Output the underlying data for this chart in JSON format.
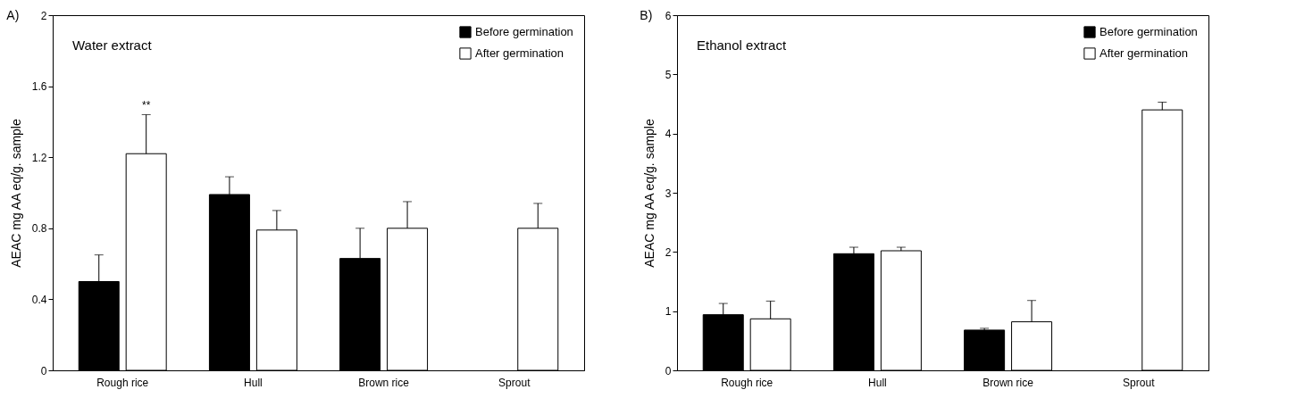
{
  "chart_data": [
    {
      "type": "bar",
      "title": "A)",
      "ylabel": "AEAC  mg AA eq/g. sample",
      "categories": [
        "Rough rice",
        "Hull",
        "Brown rice",
        "Sprout"
      ],
      "ylim": [
        0,
        2
      ],
      "yticks": [
        0,
        0.4,
        0.8,
        1.2,
        1.6,
        2
      ],
      "grid": false,
      "legend": "top right",
      "annotations": [
        "Water extract",
        "**"
      ],
      "series": [
        {
          "name": "Before germination",
          "color": "#000000",
          "values": [
            0.5,
            0.99,
            0.63,
            null
          ],
          "errors": [
            [
              0.5,
              0.65
            ],
            [
              0.99,
              1.09
            ],
            [
              0.63,
              0.8
            ],
            null
          ]
        },
        {
          "name": "After germination",
          "color": "#ffffff",
          "values": [
            1.22,
            0.79,
            0.8,
            0.8
          ],
          "errors": [
            [
              1.22,
              1.44
            ],
            [
              0.79,
              0.9
            ],
            [
              0.8,
              0.95
            ],
            [
              0.8,
              0.94
            ]
          ]
        }
      ]
    },
    {
      "type": "bar",
      "title": "B)",
      "ylabel": "AEAC  mg AA eq/g. sample",
      "categories": [
        "Rough rice",
        "Hull",
        "Brown rice",
        "Sprout"
      ],
      "ylim": [
        0,
        6
      ],
      "yticks": [
        0,
        1,
        2,
        3,
        4,
        5,
        6
      ],
      "grid": false,
      "legend": "top right",
      "annotations": [
        "Ethanol extract"
      ],
      "series": [
        {
          "name": "Before germination",
          "color": "#000000",
          "values": [
            0.94,
            1.97,
            0.68,
            null
          ],
          "errors": [
            [
              0.94,
              1.13
            ],
            [
              1.97,
              2.08
            ],
            [
              0.68,
              0.71
            ],
            null
          ]
        },
        {
          "name": "After germination",
          "color": "#ffffff",
          "values": [
            0.87,
            2.02,
            0.82,
            4.4
          ],
          "errors": [
            [
              0.87,
              1.17
            ],
            [
              2.02,
              2.08
            ],
            [
              0.82,
              1.18
            ],
            [
              4.4,
              4.53
            ]
          ]
        }
      ]
    }
  ]
}
